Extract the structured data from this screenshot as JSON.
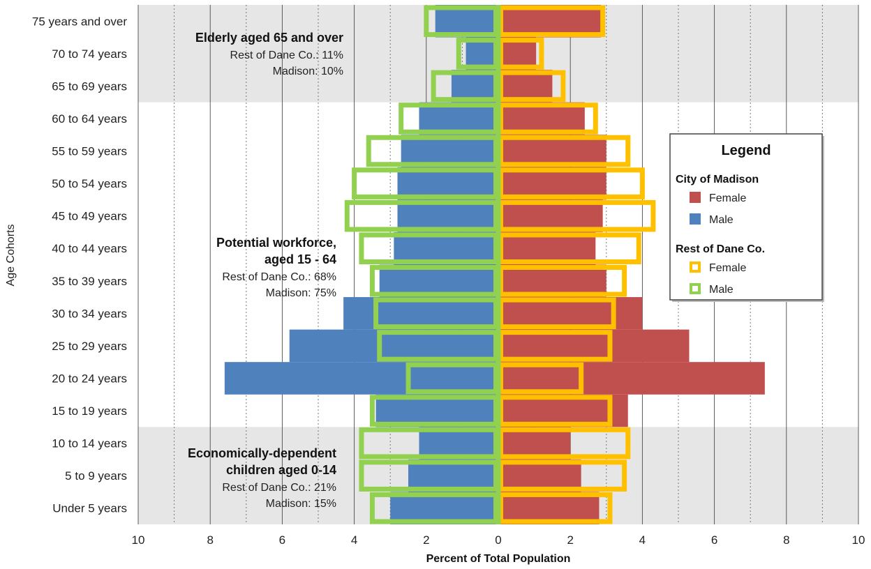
{
  "chart_data": {
    "type": "bar",
    "subtype": "population-pyramid",
    "xlabel": "Percent of Total Population",
    "ylabel": "Age Cohorts",
    "xlim": [
      -10,
      10
    ],
    "x_ticks": [
      10,
      8,
      6,
      4,
      2,
      0,
      2,
      4,
      6,
      8,
      10
    ],
    "categories": [
      "Under 5 years",
      "5 to 9 years",
      "10 to 14 years",
      "15 to 19 years",
      "20 to 24 years",
      "25 to 29 years",
      "30 to 34 years",
      "35 to 39 years",
      "40 to 44 years",
      "45 to 49 years",
      "50 to 54 years",
      "55 to 59 years",
      "60 to 64 years",
      "65 to 69 years",
      "70 to 74 years",
      "75 years and over"
    ],
    "series": [
      {
        "name": "City of Madison Female",
        "group": "City of Madison",
        "sex": "Female",
        "side": "right",
        "style": "filled",
        "color": "#c0504d",
        "values": [
          2.8,
          2.3,
          2.0,
          3.6,
          7.4,
          5.3,
          4.0,
          3.0,
          2.7,
          2.9,
          3.0,
          3.0,
          2.4,
          1.5,
          1.05,
          2.85
        ]
      },
      {
        "name": "City of Madison Male",
        "group": "City of Madison",
        "sex": "Male",
        "side": "left",
        "style": "filled",
        "color": "#4f81bd",
        "values": [
          3.0,
          2.5,
          2.2,
          3.4,
          7.6,
          5.8,
          4.3,
          3.3,
          2.9,
          2.8,
          2.8,
          2.7,
          2.2,
          1.3,
          0.9,
          1.75
        ]
      },
      {
        "name": "Rest of Dane Co. Female",
        "group": "Rest of Dane Co.",
        "sex": "Female",
        "side": "right",
        "style": "outline",
        "color": "#ffc000",
        "values": [
          3.1,
          3.5,
          3.6,
          3.1,
          2.3,
          3.1,
          3.2,
          3.5,
          3.9,
          4.3,
          4.0,
          3.6,
          2.7,
          1.8,
          1.2,
          2.9
        ]
      },
      {
        "name": "Rest of Dane Co. Male",
        "group": "Rest of Dane Co.",
        "sex": "Male",
        "side": "left",
        "style": "outline",
        "color": "#92d050",
        "values": [
          3.5,
          3.8,
          3.8,
          3.5,
          2.5,
          3.3,
          3.4,
          3.5,
          3.8,
          4.2,
          4.0,
          3.6,
          2.7,
          1.8,
          1.1,
          2.0
        ]
      }
    ],
    "bands": [
      {
        "from_category": "75 years and over",
        "to_category": "65 to 69 years",
        "color": "#e6e6e6"
      },
      {
        "from_category": "10 to 14 years",
        "to_category": "Under 5 years",
        "color": "#e6e6e6"
      }
    ],
    "grid": true,
    "annotations": [
      {
        "id": "elderly",
        "lines": [
          "Elderly aged 65 and over",
          "Rest of Dane Co.: 11%",
          "Madison: 10%"
        ],
        "bold_lines": 1,
        "anchor_category": "75 years and over"
      },
      {
        "id": "workforce",
        "lines": [
          "Potential workforce,",
          "aged 15 - 64",
          "Rest of Dane Co.: 68%",
          "Madison: 75%"
        ],
        "bold_lines": 2,
        "anchor_category": "40 to 44 years"
      },
      {
        "id": "children",
        "lines": [
          "Economically-dependent",
          "children aged 0-14",
          "Rest of Dane Co.: 21%",
          "Madison: 15%"
        ],
        "bold_lines": 2,
        "anchor_category": "10 to 14 years"
      }
    ],
    "legend": {
      "title": "Legend",
      "placement": "right",
      "groups": [
        {
          "label": "City of Madison",
          "items": [
            {
              "label": "Female",
              "color": "#c0504d",
              "style": "filled"
            },
            {
              "label": "Male",
              "color": "#4f81bd",
              "style": "filled"
            }
          ]
        },
        {
          "label": "Rest of Dane Co.",
          "items": [
            {
              "label": "Female",
              "color": "#ffc000",
              "style": "outline"
            },
            {
              "label": "Male",
              "color": "#92d050",
              "style": "outline"
            }
          ]
        }
      ]
    }
  }
}
